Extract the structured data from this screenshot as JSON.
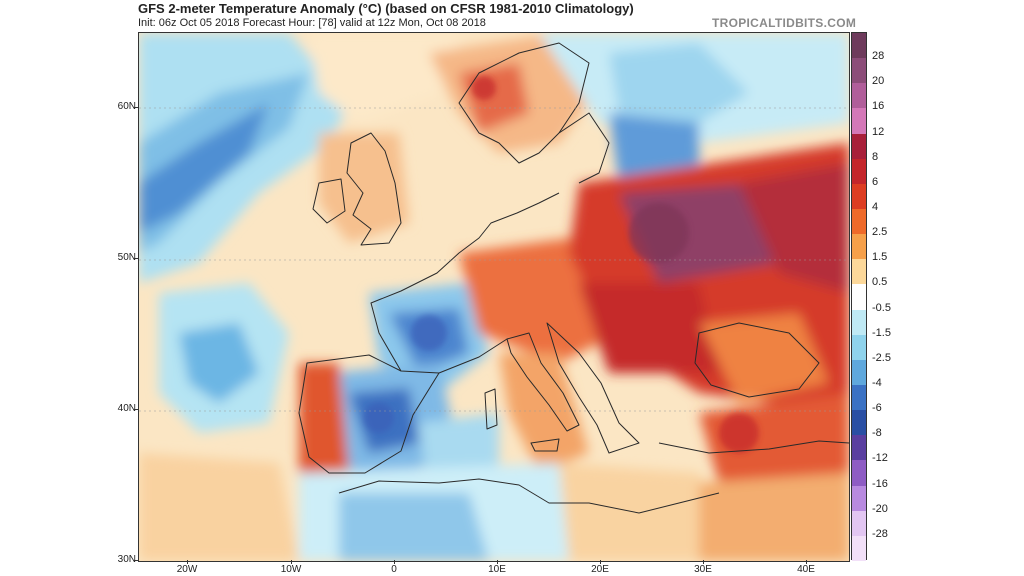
{
  "header": {
    "title": "GFS 2-meter Temperature Anomaly (°C) (based on CFSR 1981-2010 Climatology)",
    "subtitle": "Init: 06z Oct 05 2018   Forecast Hour: [78]   valid at 12z Mon, Oct 08 2018",
    "brand": "TROPICALTIDBITS.COM"
  },
  "axes": {
    "lat_labels": [
      "60N",
      "50N",
      "40N",
      "30N"
    ],
    "lon_labels": [
      "20W",
      "10W",
      "0",
      "10E",
      "20E",
      "30E",
      "40E"
    ]
  },
  "colorbar": {
    "labels": [
      "28",
      "20",
      "16",
      "12",
      "8",
      "6",
      "4",
      "2.5",
      "1.5",
      "0.5",
      "-0.5",
      "-1.5",
      "-2.5",
      "-4",
      "-6",
      "-8",
      "-12",
      "-16",
      "-20",
      "-28"
    ],
    "colors": [
      "#6e3b5c",
      "#8c4d79",
      "#b05e9a",
      "#d478b8",
      "#a8203a",
      "#c4262b",
      "#dd3d22",
      "#ef6a2a",
      "#f6a04a",
      "#fcd89a",
      "#ffffff",
      "#bfe9f4",
      "#8fd3ec",
      "#5fa8dd",
      "#3b72c4",
      "#2a4fa4",
      "#5a3fa0",
      "#8e5cc4",
      "#b88ae0",
      "#e2c6f2",
      "#f2e0f8"
    ]
  },
  "map": {
    "region": "Europe",
    "warm_anomaly_color": "#d8322a",
    "cold_anomaly_color": "#3f7fd0",
    "ocean_neutral_color": "#fbe8c8"
  }
}
